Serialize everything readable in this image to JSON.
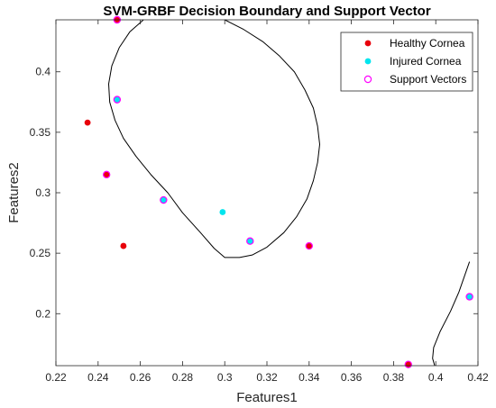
{
  "chart_data": {
    "type": "scatter",
    "title": "SVM-GRBF Decision Boundary and Support Vector",
    "xlabel": "Features1",
    "ylabel": "Features2",
    "xlim": [
      0.22,
      0.42
    ],
    "ylim": [
      0.157,
      0.443
    ],
    "xticks": [
      "0.22",
      "0.24",
      "0.26",
      "0.28",
      "0.3",
      "0.32",
      "0.34",
      "0.36",
      "0.38",
      "0.4",
      "0.42"
    ],
    "yticks": [
      "0.2",
      "0.25",
      "0.3",
      "0.35",
      "0.4"
    ],
    "grid": false,
    "legend_position": "top-right",
    "series": [
      {
        "name": "Healthy Cornea",
        "marker": "filled-circle",
        "color": "#e8000b",
        "points": [
          {
            "x": 0.249,
            "y": 0.443
          },
          {
            "x": 0.235,
            "y": 0.358
          },
          {
            "x": 0.244,
            "y": 0.315
          },
          {
            "x": 0.252,
            "y": 0.256
          },
          {
            "x": 0.34,
            "y": 0.256
          },
          {
            "x": 0.387,
            "y": 0.158
          }
        ]
      },
      {
        "name": "Injured Cornea",
        "marker": "filled-circle",
        "color": "#00e5ee",
        "points": [
          {
            "x": 0.249,
            "y": 0.377
          },
          {
            "x": 0.271,
            "y": 0.294
          },
          {
            "x": 0.299,
            "y": 0.284
          },
          {
            "x": 0.312,
            "y": 0.26
          },
          {
            "x": 0.416,
            "y": 0.214
          }
        ]
      },
      {
        "name": "Support Vectors",
        "marker": "open-circle",
        "color": "#ff00ff",
        "points": [
          {
            "x": 0.249,
            "y": 0.443
          },
          {
            "x": 0.249,
            "y": 0.377
          },
          {
            "x": 0.244,
            "y": 0.315
          },
          {
            "x": 0.271,
            "y": 0.294
          },
          {
            "x": 0.312,
            "y": 0.26
          },
          {
            "x": 0.34,
            "y": 0.256
          },
          {
            "x": 0.387,
            "y": 0.158
          },
          {
            "x": 0.416,
            "y": 0.214
          }
        ]
      }
    ],
    "decision_boundary": {
      "name": "Decision Boundary",
      "color": "#000000",
      "segments": [
        [
          [
            0.2615,
            0.443
          ],
          [
            0.255,
            0.433
          ],
          [
            0.25,
            0.42
          ],
          [
            0.2465,
            0.405
          ],
          [
            0.245,
            0.39
          ],
          [
            0.2455,
            0.375
          ],
          [
            0.248,
            0.36
          ],
          [
            0.252,
            0.345
          ],
          [
            0.258,
            0.33
          ],
          [
            0.265,
            0.315
          ],
          [
            0.273,
            0.3
          ],
          [
            0.28,
            0.2835
          ],
          [
            0.288,
            0.268
          ],
          [
            0.295,
            0.254
          ],
          [
            0.3,
            0.2465
          ],
          [
            0.307,
            0.2465
          ],
          [
            0.313,
            0.2485
          ],
          [
            0.32,
            0.255
          ],
          [
            0.328,
            0.267
          ],
          [
            0.334,
            0.28
          ],
          [
            0.339,
            0.295
          ],
          [
            0.342,
            0.31
          ],
          [
            0.344,
            0.325
          ],
          [
            0.345,
            0.34
          ],
          [
            0.344,
            0.355
          ],
          [
            0.342,
            0.37
          ],
          [
            0.338,
            0.385
          ],
          [
            0.333,
            0.4
          ],
          [
            0.326,
            0.413
          ],
          [
            0.318,
            0.425
          ],
          [
            0.309,
            0.435
          ],
          [
            0.3,
            0.443
          ]
        ],
        [
          [
            0.3995,
            0.157
          ],
          [
            0.3985,
            0.163
          ],
          [
            0.399,
            0.172
          ],
          [
            0.402,
            0.185
          ],
          [
            0.407,
            0.202
          ],
          [
            0.411,
            0.218
          ],
          [
            0.414,
            0.233
          ],
          [
            0.416,
            0.243
          ]
        ]
      ]
    }
  }
}
